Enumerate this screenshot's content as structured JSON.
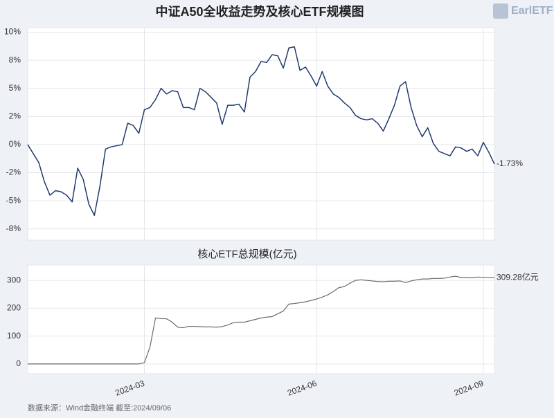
{
  "title": "中证A50全收益走势及核心ETF规模图",
  "logo": "EarlETF",
  "source": "数据来源：Wind金融终端 截至:2024/09/06",
  "chart_data": [
    {
      "type": "line",
      "color": "#1f3a6b",
      "grid": true,
      "values": [
        0,
        -0.8,
        -1.6,
        -3.3,
        -4.5,
        -4.1,
        -4.2,
        -4.5,
        -5.1,
        -2.1,
        -3.1,
        -5.3,
        -6.3,
        -3.7,
        -0.4,
        -0.2,
        -0.1,
        0.0,
        1.9,
        1.7,
        1.0,
        3.1,
        3.3,
        4.0,
        5.0,
        4.5,
        4.8,
        4.7,
        3.3,
        3.3,
        3.1,
        5.0,
        4.7,
        4.2,
        3.7,
        1.8,
        3.5,
        3.5,
        3.6,
        2.9,
        6.0,
        6.5,
        7.4,
        7.3,
        8.0,
        7.9,
        6.8,
        8.6,
        8.7,
        6.6,
        6.9,
        6.1,
        5.2,
        6.5,
        5.2,
        4.5,
        4.2,
        3.7,
        3.3,
        2.6,
        2.3,
        2.2,
        2.3,
        1.9,
        1.2,
        2.3,
        3.5,
        5.2,
        5.6,
        3.3,
        1.7,
        0.7,
        1.5,
        0.1,
        -0.6,
        -0.8,
        -1.0,
        -0.2,
        -0.3,
        -0.6,
        -0.4,
        -1.0,
        0.2,
        -0.7,
        -1.73
      ],
      "end_label": "-1.73%",
      "ylim": [
        -8.5,
        10.4
      ],
      "yticks": [
        {
          "value": -7.5,
          "label": "-8%"
        },
        {
          "value": -5,
          "label": "-5%"
        },
        {
          "value": -2.5,
          "label": "-2%"
        },
        {
          "value": 0,
          "label": "0%"
        },
        {
          "value": 2.5,
          "label": "2%"
        },
        {
          "value": 5,
          "label": "5%"
        },
        {
          "value": 7.5,
          "label": "8%"
        },
        {
          "value": 10,
          "label": "10%"
        }
      ]
    },
    {
      "type": "line",
      "title": "核心ETF总规模(亿元)",
      "color": "#6b6b6b",
      "grid": true,
      "categories": [
        null,
        null,
        null,
        null,
        null,
        null,
        null,
        null,
        null,
        null,
        null,
        null,
        null,
        null,
        null,
        null,
        null,
        null,
        null,
        null,
        null,
        "2024-03",
        null,
        null,
        null,
        null,
        null,
        null,
        null,
        null,
        null,
        null,
        null,
        null,
        null,
        null,
        null,
        null,
        null,
        null,
        null,
        null,
        null,
        null,
        null,
        null,
        null,
        null,
        null,
        null,
        null,
        null,
        "2024-06",
        null,
        null,
        null,
        null,
        null,
        null,
        null,
        null,
        null,
        null,
        null,
        null,
        null,
        null,
        null,
        null,
        null,
        null,
        null,
        null,
        null,
        null,
        null,
        null,
        null,
        null,
        null,
        null,
        null,
        "2024-09",
        null,
        null
      ],
      "values": [
        0,
        0,
        0,
        0,
        0,
        0,
        0,
        0,
        0,
        0,
        0,
        0,
        0,
        0,
        0,
        0,
        0,
        0,
        0,
        0,
        0,
        5,
        60,
        165,
        163,
        162,
        150,
        132,
        130,
        135,
        135,
        134,
        133,
        133,
        132,
        134,
        140,
        148,
        150,
        150,
        155,
        160,
        165,
        168,
        170,
        180,
        190,
        215,
        217,
        220,
        223,
        228,
        233,
        240,
        248,
        260,
        274,
        278,
        290,
        300,
        302,
        300,
        298,
        296,
        295,
        297,
        297,
        298,
        292,
        298,
        302,
        305,
        305,
        307,
        307,
        308,
        312,
        315,
        310,
        310,
        309,
        312,
        311,
        311,
        309.28
      ],
      "end_label": "309.28亿元",
      "ylim": [
        -35,
        355
      ],
      "yticks": [
        0,
        100,
        200,
        300
      ]
    }
  ]
}
